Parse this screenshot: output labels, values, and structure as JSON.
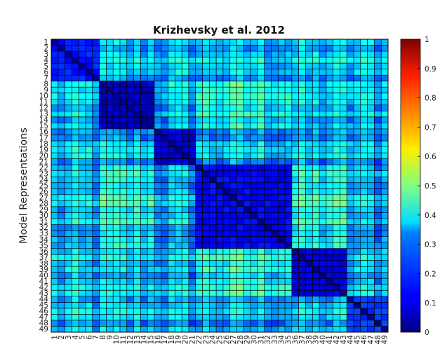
{
  "chart_data": {
    "type": "heatmap",
    "title": "Krizhevsky et al. 2012",
    "xlabel": "",
    "ylabel": "Model Representations",
    "n": 49,
    "row_labels": [
      "1",
      "2",
      "3",
      "4",
      "5",
      "6",
      "7",
      "8",
      "9",
      "10",
      "11",
      "12",
      "13",
      "14",
      "15",
      "16",
      "17",
      "18",
      "19",
      "20",
      "21",
      "22",
      "23",
      "24",
      "25",
      "26",
      "27",
      "28",
      "29",
      "30",
      "31",
      "32",
      "33",
      "34",
      "35",
      "36",
      "37",
      "38",
      "39",
      "40",
      "41",
      "42",
      "43",
      "44",
      "45",
      "46",
      "47",
      "48",
      "49"
    ],
    "col_labels": [
      "1",
      "2",
      "3",
      "4",
      "5",
      "6",
      "7",
      "8",
      "9",
      "10",
      "11",
      "12",
      "13",
      "14",
      "15",
      "16",
      "17",
      "18",
      "19",
      "20",
      "21",
      "22",
      "23",
      "24",
      "25",
      "26",
      "27",
      "28",
      "29",
      "30",
      "31",
      "32",
      "33",
      "34",
      "35",
      "36",
      "37",
      "38",
      "39",
      "40",
      "41",
      "42",
      "43",
      "44",
      "45",
      "46",
      "47",
      "48",
      "49"
    ],
    "clusters": [
      {
        "start": 1,
        "end": 7
      },
      {
        "start": 8,
        "end": 15
      },
      {
        "start": 16,
        "end": 21
      },
      {
        "start": 22,
        "end": 35
      },
      {
        "start": 36,
        "end": 43
      },
      {
        "start": 44,
        "end": 49
      }
    ],
    "approx_dissimilarity": {
      "diagonal": 0.0,
      "within_cluster_1_7": 0.15,
      "within_cluster_8_15": 0.06,
      "within_cluster_16_21": 0.08,
      "within_cluster_22_35": 0.12,
      "within_cluster_36_43": 0.1,
      "within_cluster_44_49": 0.18,
      "between_clusters_typical": 0.3,
      "between_clusters_max": 0.5
    },
    "colorbar": {
      "colormap": "jet",
      "range": [
        0,
        1
      ],
      "ticks": [
        "0",
        "0.1",
        "0.2",
        "0.3",
        "0.4",
        "0.5",
        "0.6",
        "0.7",
        "0.8",
        "0.9",
        "1"
      ]
    },
    "grid": true
  }
}
